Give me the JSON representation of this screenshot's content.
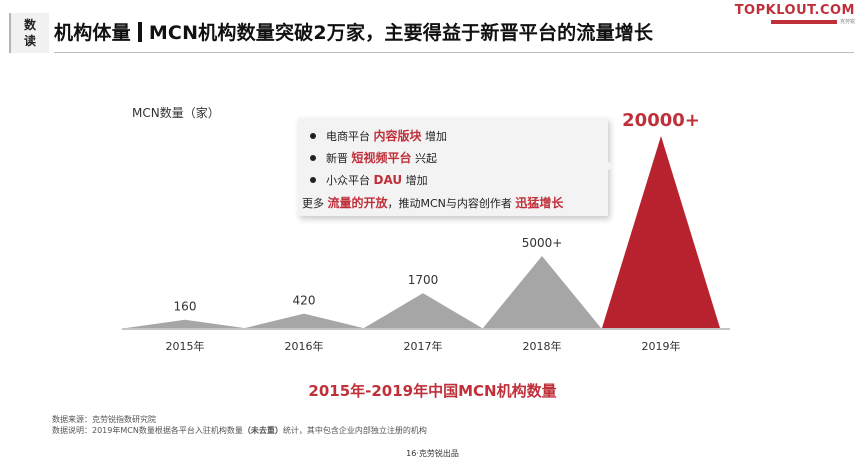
{
  "header": {
    "badge_line1": "数",
    "badge_line2": "读",
    "title_left": "机构体量",
    "title_right": "MCN机构数量突破2万家，主要得益于新晋平台的流量增长"
  },
  "logo": {
    "brand": "TOPKLOUT.COM",
    "sub": "克劳锐"
  },
  "callout": {
    "line1": {
      "pre": "电商平台",
      "hl": "内容版块",
      "post": "增加"
    },
    "line2": {
      "pre": "新晋",
      "hl": "短视频平台",
      "post": "兴起"
    },
    "line3": {
      "pre": "小众平台",
      "hl": "DAU",
      "post": "增加"
    },
    "line4": {
      "pre": "更多",
      "hl1": "流量的开放",
      "mid": "，推动MCN与内容创作者",
      "hl2": "迅猛增长"
    }
  },
  "chart_data": {
    "type": "area",
    "title": "2015年-2019年中国MCN机构数量",
    "ylabel": "MCN数量（家）",
    "categories": [
      "2015年",
      "2016年",
      "2017年",
      "2018年",
      "2019年"
    ],
    "values": [
      160,
      420,
      1700,
      5000,
      20000
    ],
    "data_labels": [
      "160",
      "420",
      "1700",
      "5000+",
      "20000+"
    ],
    "colors": [
      "#a6a6a6",
      "#a6a6a6",
      "#a6a6a6",
      "#a6a6a6",
      "#b8222e"
    ],
    "label_colors": [
      "#333333",
      "#333333",
      "#333333",
      "#333333",
      "#c0303a"
    ],
    "grid": false
  },
  "footer": {
    "source": "数据来源：克劳锐指数研究院",
    "note_pre": "数据说明：2019年MCN数量根据各平台入驻机构数量",
    "note_bold": "（未去重）",
    "note_post": "统计，其中包含企业内部独立注册的机构",
    "page": "16·克劳锐出品"
  }
}
